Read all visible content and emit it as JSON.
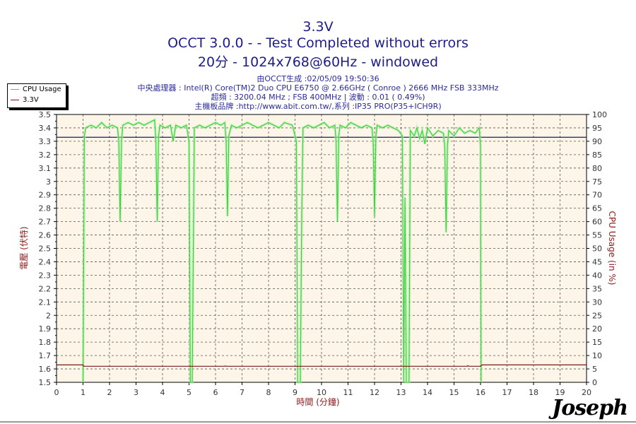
{
  "header": {
    "title": "3.3V",
    "subtitle": "OCCT 3.0.0 -  - Test Completed without errors",
    "config": "20分 - 1024x768@60Hz - windowed",
    "info": [
      "由OCCT生成 :02/05/09 19:50:36",
      "中央處理器 : Intel(R) Core(TM)2 Duo CPU E6750 @ 2.66GHz ( Conroe ) 2666 MHz FSB 333MHz",
      "超頻 : 3200.04 MHz ; FSB 400MHz | 波動 : 0.01 ( 0.49%)",
      "主機板品牌 :http://www.abit.com.tw/,系列 :IP35 PRO(P35+ICH9R)"
    ]
  },
  "logo_text": "Joseph",
  "chart_data": {
    "type": "line",
    "xlabel": "時間 (分鐘)",
    "ylabel": "電壓 (伏特)",
    "y2label": "CPU Usage (in %)",
    "xlim": [
      0,
      20
    ],
    "ylim": [
      1.5,
      3.5
    ],
    "y2lim": [
      0,
      100
    ],
    "xticks": [
      "0",
      "1",
      "2",
      "3",
      "4",
      "5",
      "6",
      "7",
      "8",
      "9",
      "10",
      "11",
      "12",
      "13",
      "14",
      "15",
      "16",
      "17",
      "18",
      "19",
      "20"
    ],
    "yticks": [
      "3.5",
      "3.4",
      "3.3",
      "3.2",
      "3.1",
      "3",
      "2.9",
      "2.8",
      "2.7",
      "2.6",
      "2.5",
      "2.4",
      "2.3",
      "2.2",
      "2.1",
      "2",
      "1.9",
      "1.8",
      "1.7",
      "1.6",
      "1.5"
    ],
    "y2ticks": [
      "100",
      "95",
      "90",
      "85",
      "80",
      "75",
      "70",
      "65",
      "60",
      "55",
      "50",
      "45",
      "40",
      "35",
      "30",
      "25",
      "20",
      "15",
      "10",
      "5",
      "0"
    ],
    "grid": true,
    "legend_placement": "top-left",
    "reference_line": {
      "value": 3.33,
      "color": "#1a1a6e"
    },
    "colors": {
      "background": "#fdf6e8",
      "grid": "#555555",
      "axis_text": "#333333",
      "label": "#8b1a1a",
      "title": "#1c1c8a"
    },
    "series": [
      {
        "name": "CPU Usage",
        "axis": "right",
        "color": "#3fcf3f",
        "points": [
          [
            1.0,
            0
          ],
          [
            1.05,
            92
          ],
          [
            1.1,
            95
          ],
          [
            1.3,
            96
          ],
          [
            1.5,
            95
          ],
          [
            1.7,
            97
          ],
          [
            1.9,
            95
          ],
          [
            2.1,
            96
          ],
          [
            2.3,
            95
          ],
          [
            2.35,
            90
          ],
          [
            2.4,
            60
          ],
          [
            2.45,
            90
          ],
          [
            2.5,
            96
          ],
          [
            2.7,
            97
          ],
          [
            2.9,
            96
          ],
          [
            3.1,
            97
          ],
          [
            3.3,
            96
          ],
          [
            3.5,
            97
          ],
          [
            3.7,
            98
          ],
          [
            3.75,
            90
          ],
          [
            3.8,
            60
          ],
          [
            3.85,
            92
          ],
          [
            3.9,
            96
          ],
          [
            4.1,
            95
          ],
          [
            4.3,
            96
          ],
          [
            4.4,
            90
          ],
          [
            4.5,
            96
          ],
          [
            4.7,
            95
          ],
          [
            4.9,
            96
          ],
          [
            5.0,
            90
          ],
          [
            5.05,
            0
          ],
          [
            5.12,
            0
          ],
          [
            5.2,
            95
          ],
          [
            5.4,
            96
          ],
          [
            5.6,
            95
          ],
          [
            5.8,
            96
          ],
          [
            6.0,
            97
          ],
          [
            6.2,
            96
          ],
          [
            6.35,
            97
          ],
          [
            6.4,
            90
          ],
          [
            6.45,
            62
          ],
          [
            6.5,
            92
          ],
          [
            6.6,
            96
          ],
          [
            6.8,
            95
          ],
          [
            7.0,
            96
          ],
          [
            7.2,
            97
          ],
          [
            7.4,
            96
          ],
          [
            7.6,
            95
          ],
          [
            7.8,
            96
          ],
          [
            8.0,
            97
          ],
          [
            8.2,
            96
          ],
          [
            8.4,
            95
          ],
          [
            8.6,
            97
          ],
          [
            8.9,
            96
          ],
          [
            9.05,
            90
          ],
          [
            9.1,
            0
          ],
          [
            9.2,
            0
          ],
          [
            9.25,
            60
          ],
          [
            9.3,
            95
          ],
          [
            9.5,
            96
          ],
          [
            9.7,
            95
          ],
          [
            9.9,
            96
          ],
          [
            10.1,
            97
          ],
          [
            10.3,
            95
          ],
          [
            10.5,
            96
          ],
          [
            10.55,
            90
          ],
          [
            10.6,
            60
          ],
          [
            10.65,
            92
          ],
          [
            10.7,
            96
          ],
          [
            10.9,
            95
          ],
          [
            11.1,
            97
          ],
          [
            11.3,
            96
          ],
          [
            11.5,
            95
          ],
          [
            11.7,
            96
          ],
          [
            11.9,
            95
          ],
          [
            11.95,
            90
          ],
          [
            12.0,
            62
          ],
          [
            12.05,
            92
          ],
          [
            12.1,
            96
          ],
          [
            12.3,
            95
          ],
          [
            12.5,
            96
          ],
          [
            12.7,
            95
          ],
          [
            12.9,
            94
          ],
          [
            13.05,
            92
          ],
          [
            13.1,
            0
          ],
          [
            13.15,
            69
          ],
          [
            13.2,
            0
          ],
          [
            13.3,
            0
          ],
          [
            13.35,
            94
          ],
          [
            13.5,
            92
          ],
          [
            13.6,
            95
          ],
          [
            13.7,
            91
          ],
          [
            13.8,
            94
          ],
          [
            13.9,
            89
          ],
          [
            14.0,
            95
          ],
          [
            14.2,
            92
          ],
          [
            14.4,
            94
          ],
          [
            14.6,
            93
          ],
          [
            14.65,
            88
          ],
          [
            14.7,
            56
          ],
          [
            14.75,
            88
          ],
          [
            14.8,
            94
          ],
          [
            15.0,
            92
          ],
          [
            15.2,
            95
          ],
          [
            15.4,
            93
          ],
          [
            15.6,
            94
          ],
          [
            15.8,
            93
          ],
          [
            15.95,
            95
          ],
          [
            16.0,
            88
          ],
          [
            16.02,
            0
          ]
        ]
      },
      {
        "name": "3.3V",
        "axis": "left",
        "color": "#7a1a1a",
        "points": [
          [
            0,
            1.63
          ],
          [
            1.0,
            1.63
          ],
          [
            1.02,
            1.62
          ],
          [
            6.35,
            1.62
          ],
          [
            6.37,
            1.623
          ],
          [
            6.4,
            1.62
          ],
          [
            15.5,
            1.62
          ],
          [
            15.52,
            1.625
          ],
          [
            15.55,
            1.62
          ],
          [
            16.0,
            1.62
          ],
          [
            16.05,
            1.63
          ],
          [
            20,
            1.63
          ]
        ]
      }
    ]
  }
}
